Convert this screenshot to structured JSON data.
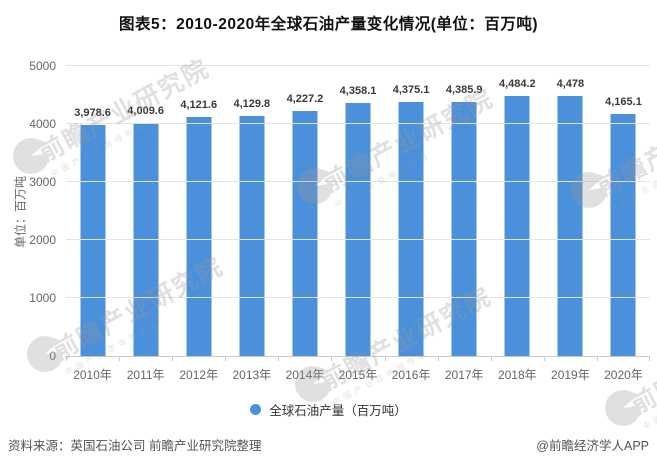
{
  "chart_data": {
    "type": "bar",
    "title": "图表5：2010-2020年全球石油产量变化情况(单位：百万吨)",
    "categories": [
      "2010年",
      "2011年",
      "2012年",
      "2013年",
      "2014年",
      "2015年",
      "2016年",
      "2017年",
      "2018年",
      "2019年",
      "2020年"
    ],
    "values": [
      3978.6,
      4009.6,
      4121.6,
      4129.8,
      4227.2,
      4358.1,
      4375.1,
      4385.9,
      4484.2,
      4478,
      4165.1
    ],
    "value_labels": [
      "3,978.6",
      "4,009.6",
      "4,121.6",
      "4,129.8",
      "4,227.2",
      "4,358.1",
      "4,375.1",
      "4,385.9",
      "4,484.2",
      "4,478",
      "4,165.1"
    ],
    "xlabel": "",
    "ylabel": "单位：百万吨",
    "ylim": [
      0,
      5000
    ],
    "yticks": [
      0,
      1000,
      2000,
      3000,
      4000,
      5000
    ],
    "grid": true,
    "legend": "全球石油产量（百万吨）",
    "legend_position": "bottom",
    "bar_color": "#4b90da"
  },
  "footer": {
    "source": "资料来源：英国石油公司 前瞻产业研究院整理",
    "credit": "@前瞻经济学人APP"
  },
  "watermark": {
    "text": "前瞻产业研究院",
    "subtext": "中国产业咨询领导者"
  },
  "colors": {
    "bar": "#4b90da",
    "value_label": "#3a3a3a",
    "axis_text": "#666666",
    "grid_line": "#e4e4e4",
    "axis_line": "#cccccc",
    "watermark": "#9a9a9a"
  }
}
